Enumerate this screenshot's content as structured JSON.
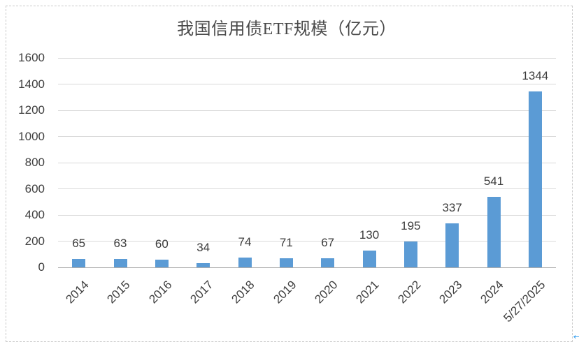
{
  "chart_data": {
    "type": "bar",
    "title": "我国信用债ETF规模（亿元）",
    "categories": [
      "2014",
      "2015",
      "2016",
      "2017",
      "2018",
      "2019",
      "2020",
      "2021",
      "2022",
      "2023",
      "2024",
      "5/27/2025"
    ],
    "values": [
      65,
      63,
      60,
      34,
      74,
      71,
      67,
      130,
      195,
      337,
      541,
      1344
    ],
    "xlabel": "",
    "ylabel": "",
    "ylim": [
      0,
      1600
    ],
    "yticks": [
      0,
      200,
      400,
      600,
      800,
      1000,
      1200,
      1400,
      1600
    ],
    "grid": true,
    "legend": false,
    "data_labels": true,
    "x_tick_rotation_deg": 45
  },
  "colors": {
    "bar": "#5b9bd5",
    "gridline": "#d9d9d9",
    "axis_line": "#adadad",
    "tick_text": "#404040",
    "data_label_text": "#3d3d3d",
    "title_text": "#4a4a4a",
    "selection_border": "#c9c9c9",
    "arrow": "#2e9cf0"
  },
  "decorations": {
    "left_arrow": "←"
  }
}
